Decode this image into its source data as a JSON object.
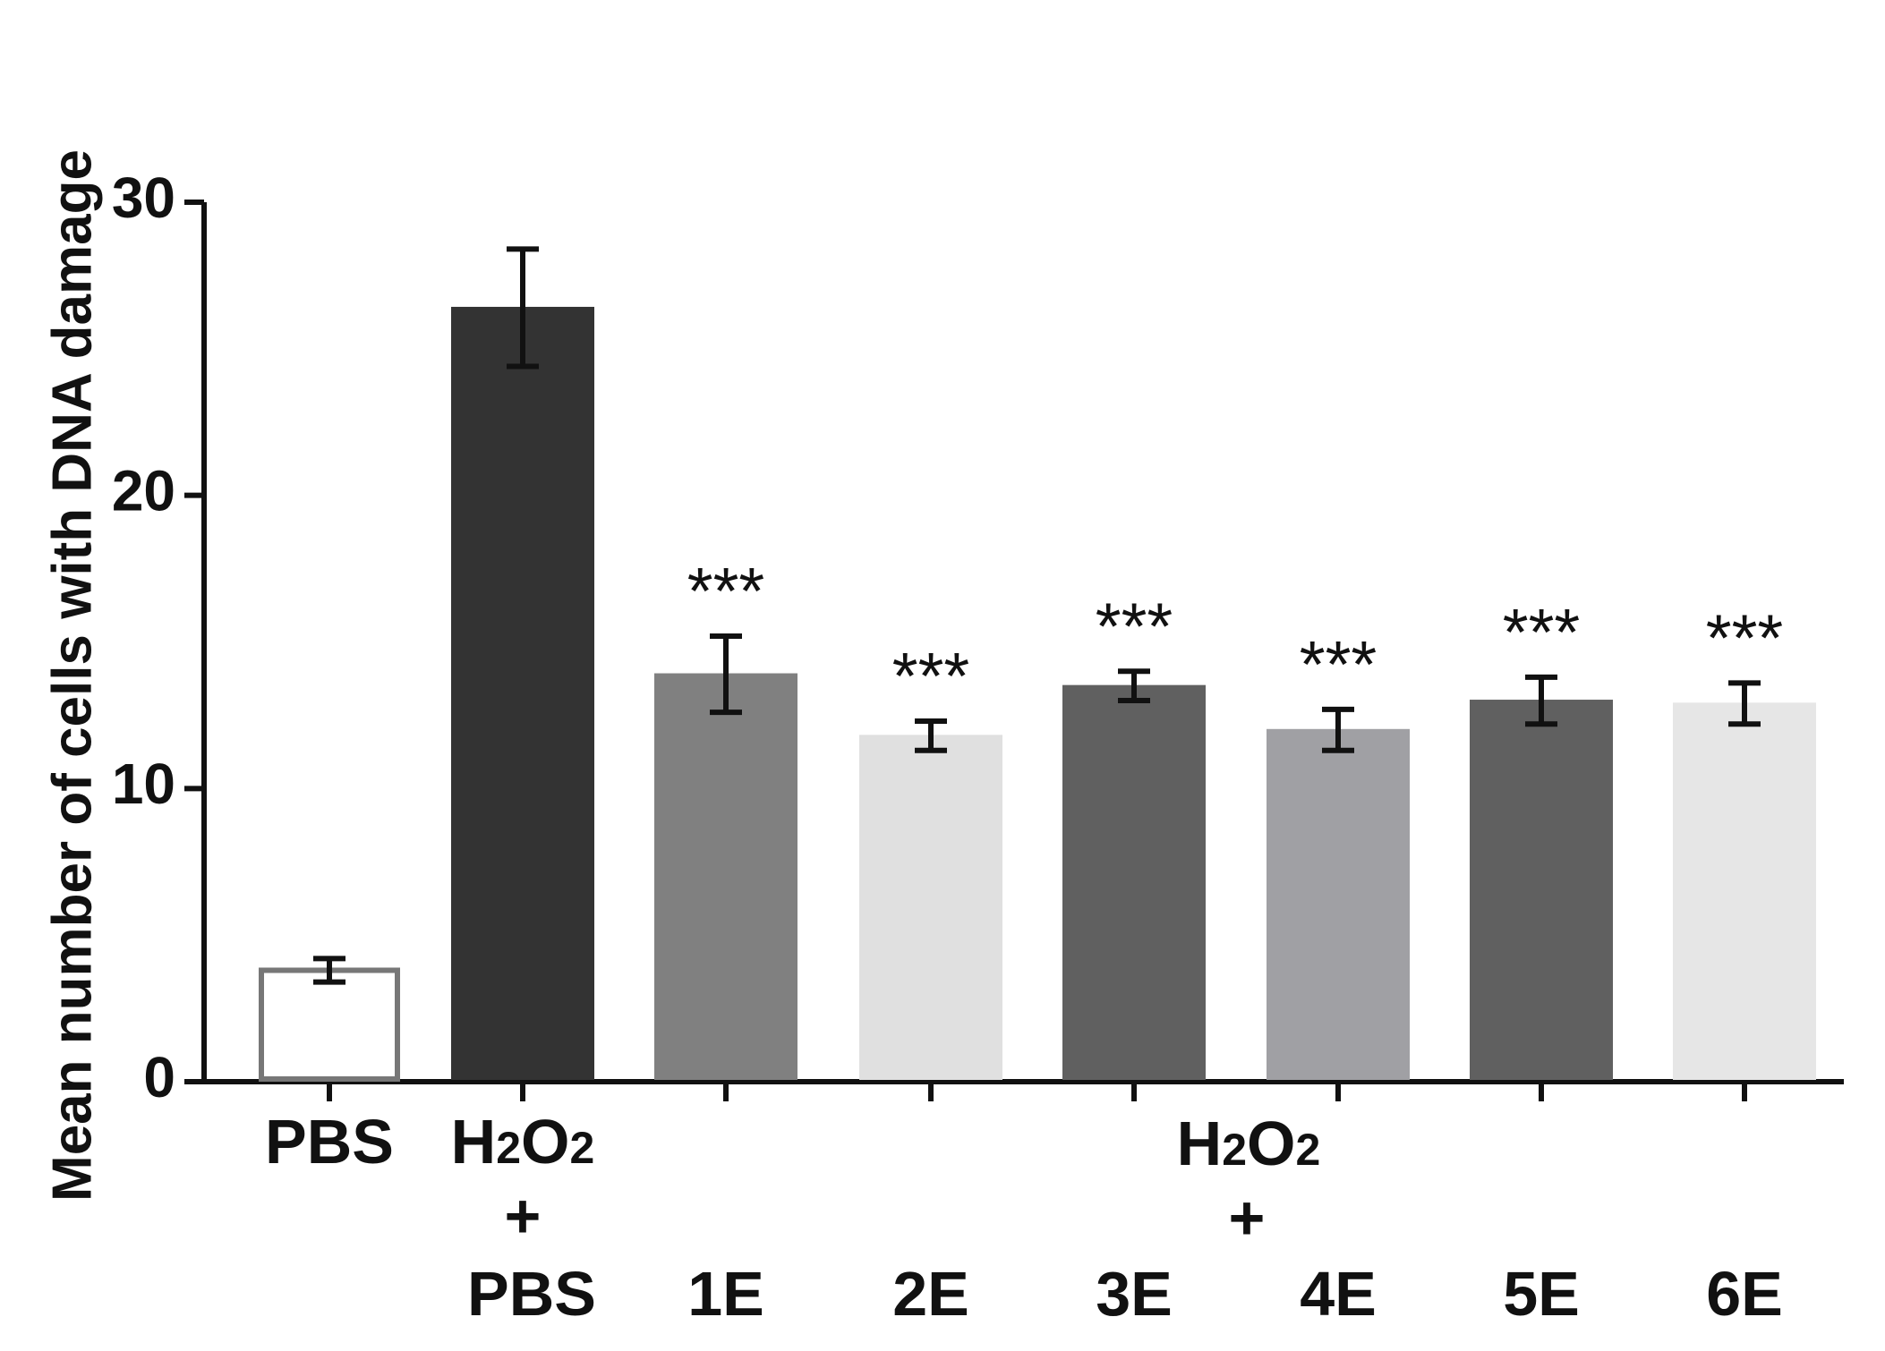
{
  "chart_data": {
    "type": "bar",
    "ylabel": "Mean number of cells with DNA damage",
    "ylim": [
      0,
      30
    ],
    "yticks": [
      0,
      10,
      20,
      30
    ],
    "grid": false,
    "categories": [
      "PBS",
      "H2O2 + PBS",
      "1E",
      "2E",
      "3E",
      "4E",
      "5E",
      "6E"
    ],
    "values": [
      3.8,
      26.4,
      13.9,
      11.8,
      13.5,
      12.0,
      13.0,
      12.9
    ],
    "errors": [
      0.4,
      2.0,
      1.3,
      0.5,
      0.5,
      0.7,
      0.8,
      0.7
    ],
    "bar_colors": [
      "#ffffff",
      "#333333",
      "#808080",
      "#e0e0e0",
      "#606060",
      "#a0a0a4",
      "#606060",
      "#e6e6e6"
    ],
    "bar_outline_colors": [
      "#777777",
      "#333333",
      "#808080",
      "#e0e0e0",
      "#606060",
      "#a0a0a4",
      "#606060",
      "#e6e6e6"
    ],
    "significance": [
      "",
      "",
      "***",
      "***",
      "***",
      "***",
      "***",
      "***"
    ],
    "x_labels": {
      "pbs": "PBS",
      "h2o2_pbs": {
        "h": "H",
        "sub1": "2",
        "o": "O",
        "sub2": "2",
        "plus": "+",
        "pbs": "PBS"
      },
      "group": {
        "h": "H",
        "sub1": "2",
        "o": "O",
        "sub2": "2",
        "plus": "+"
      },
      "group_items": [
        "1E",
        "2E",
        "3E",
        "4E",
        "5E",
        "6E"
      ]
    }
  }
}
